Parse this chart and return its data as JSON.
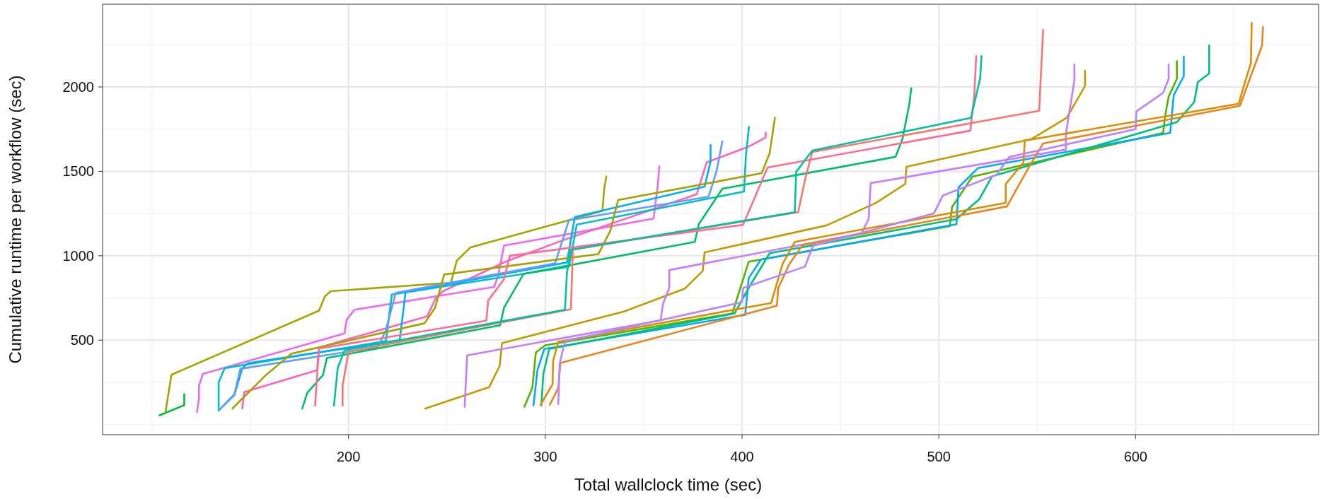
{
  "chart_data": {
    "type": "line",
    "xlabel": "Total wallclock time (sec)",
    "ylabel": "Cumulative runtime per workflow (sec)",
    "xlim": [
      75,
      693
    ],
    "ylim": [
      -60,
      2490
    ],
    "xticks": [
      {
        "value": 100,
        "label": null
      },
      {
        "value": 150,
        "label": null
      },
      200,
      {
        "value": 250,
        "label": null
      },
      300,
      {
        "value": 350,
        "label": null
      },
      400,
      {
        "value": 450,
        "label": null
      },
      500,
      {
        "value": 550,
        "label": null
      },
      600,
      {
        "value": 650,
        "label": null
      }
    ],
    "yticks": [
      {
        "value": 0,
        "label": null
      },
      {
        "value": 250,
        "label": null
      },
      500,
      {
        "value": 750,
        "label": null
      },
      1000,
      {
        "value": 1250,
        "label": null
      },
      1500,
      {
        "value": 1750,
        "label": null
      },
      2000,
      {
        "value": 2250,
        "label": null
      }
    ],
    "grid": true,
    "marker": "none",
    "line_style": "solid",
    "series": [
      {
        "color": "#00ba38",
        "x": [
          104,
          116.5,
          116.5
        ],
        "values": [
          55,
          115,
          180
        ]
      },
      {
        "color": "#a3a500",
        "x": [
          107,
          110,
          185,
          188,
          191,
          252,
          255,
          262,
          329,
          330,
          331
        ],
        "values": [
          75,
          295,
          675,
          760,
          790,
          840,
          970,
          1050,
          1265,
          1400,
          1470
        ]
      },
      {
        "color": "#e76bf3",
        "x": [
          123,
          124,
          124,
          126,
          198,
          199,
          203,
          250,
          274,
          276,
          279,
          355,
          357,
          358
        ],
        "values": [
          75,
          155,
          230,
          300,
          540,
          620,
          680,
          770,
          815,
          880,
          1060,
          1220,
          1400,
          1530
        ]
      },
      {
        "color": "#ff61c3",
        "x": [
          146,
          147,
          184,
          185,
          240,
          244,
          248,
          280,
          309,
          377,
          382,
          403,
          412,
          412
        ],
        "values": [
          95,
          192,
          322,
          456,
          641,
          742,
          790,
          966,
          1092,
          1365,
          1553,
          1645,
          1700,
          1730
        ]
      },
      {
        "color": "#00bfc4",
        "x": [
          134,
          134,
          137,
          219,
          222,
          312,
          316,
          401,
          402,
          403.5
        ],
        "values": [
          83,
          250,
          334,
          495,
          770,
          935,
          1185,
          1380,
          1600,
          1763
        ]
      },
      {
        "color": "#00b0f6",
        "x": [
          134,
          142,
          146,
          149,
          226,
          229,
          311,
          315,
          381,
          384,
          384
        ],
        "values": [
          83,
          175,
          334,
          364,
          500,
          785,
          960,
          1230,
          1410,
          1560,
          1657
        ]
      },
      {
        "color": "#619cff",
        "x": [
          134,
          142,
          145,
          215,
          219,
          224,
          305,
          312,
          383,
          387,
          390
        ],
        "values": [
          83,
          180,
          330,
          460,
          560,
          780,
          955,
          1210,
          1350,
          1500,
          1678
        ]
      },
      {
        "color": "#a6a100",
        "x": [
          141,
          158,
          171,
          238.6,
          244,
          248.6,
          327,
          333,
          337,
          410,
          414,
          416.7
        ],
        "values": [
          95,
          293,
          420,
          600,
          692,
          889,
          1010,
          1146,
          1330,
          1489,
          1607,
          1818
        ]
      },
      {
        "color": "#00be67",
        "x": [
          176.5,
          179,
          187,
          189,
          277,
          279,
          289,
          376,
          378,
          390,
          478,
          481.5,
          485,
          486
        ],
        "values": [
          95,
          188,
          293,
          394,
          588,
          692,
          893,
          1082,
          1187,
          1397,
          1586,
          1691,
          1897,
          1993
        ]
      },
      {
        "color": "#f8766d",
        "x": [
          197,
          197,
          200,
          313,
          314,
          428.5,
          432,
          435.7,
          551,
          552,
          553
        ],
        "values": [
          113,
          231,
          432,
          683,
          1036,
          1258,
          1450,
          1615,
          1859,
          2100,
          2338
        ]
      },
      {
        "color": "#ff6c91",
        "x": [
          183,
          185,
          270,
          271,
          279,
          282,
          400.5,
          413,
          516,
          518,
          519
        ],
        "values": [
          113,
          450,
          615,
          735,
          860,
          1000,
          1183,
          1523,
          1741,
          1950,
          2183
        ]
      },
      {
        "color": "#00c1a3",
        "x": [
          192.6,
          194.5,
          198,
          310,
          311,
          313,
          426.8,
          427.5,
          435.7,
          516.3,
          521,
          521.7
        ],
        "values": [
          113,
          335,
          440,
          680,
          900,
          1035,
          1258,
          1497,
          1623,
          1817,
          2050,
          2183
        ]
      },
      {
        "color": "#c49a00",
        "x": [
          239,
          271.5,
          276.8,
          278,
          340,
          371,
          380,
          381,
          443,
          468,
          483,
          483.5,
          547,
          565,
          574.3,
          574.3
        ],
        "values": [
          95,
          222,
          347,
          482,
          670,
          806,
          910,
          1020,
          1180,
          1313,
          1426,
          1527,
          1691,
          1817,
          2006,
          2096
        ]
      },
      {
        "color": "#c77cff",
        "x": [
          259,
          260.3,
          358.6,
          359.8,
          363,
          363,
          460.7,
          464.3,
          465.4,
          564.6,
          564.6,
          568.9,
          568.9
        ],
        "values": [
          105,
          410,
          617,
          714,
          810,
          915,
          1133,
          1217,
          1430,
          1629,
          1723,
          2040,
          2133
        ]
      },
      {
        "color": "#53b400",
        "x": [
          289.4,
          293.4,
          295.2,
          300,
          395,
          403.4,
          505.6,
          506.7,
          517,
          614,
          615,
          616.8,
          621,
          621
        ],
        "values": [
          105,
          217,
          427,
          470,
          658,
          965,
          1175,
          1288,
          1468,
          1728,
          1826,
          1943,
          2048,
          2153
        ]
      },
      {
        "color": "#00a9ff",
        "x": [
          294,
          296,
          299.5,
          401.6,
          403.4,
          409.6,
          509,
          510,
          520,
          617.6,
          619.4,
          624.5,
          624.5
        ],
        "values": [
          113,
          322,
          448,
          650,
          868,
          977,
          1187,
          1405,
          1520,
          1728,
          1951,
          2064,
          2180
        ]
      },
      {
        "color": "#00bf7d",
        "x": [
          298,
          299,
          302,
          396.2,
          403.4,
          414,
          509,
          520.6,
          527,
          621,
          629.8,
          631.6,
          637.4,
          637.4
        ],
        "values": [
          113,
          300,
          448,
          658,
          810,
          1015,
          1217,
          1335,
          1470,
          1792,
          1910,
          2028,
          2080,
          2246
        ]
      },
      {
        "color": "#db8e00",
        "x": [
          297.6,
          303.7,
          304,
          306.6,
          414.8,
          420.6,
          426.8,
          534,
          534,
          543,
          543.7,
          652.4,
          655,
          658.6,
          659
        ],
        "values": [
          117,
          239,
          378,
          491,
          720,
          952,
          1082,
          1313,
          1425,
          1552,
          1682,
          1901,
          2006,
          2141,
          2380
        ]
      },
      {
        "color": "#e7861b",
        "x": [
          302.3,
          306.6,
          307.7,
          417.7,
          418.4,
          424,
          430.7,
          534.6,
          545.7,
          553,
          653,
          664.3,
          664.7
        ],
        "values": [
          117,
          218,
          365,
          704,
          809,
          950,
          1062,
          1292,
          1523,
          1665,
          1888,
          2246,
          2355
        ]
      },
      {
        "color": "#b983ff",
        "x": [
          306.6,
          307.3,
          310,
          400,
          400.5,
          432,
          436,
          497.5,
          502,
          529.4,
          535.8,
          600,
          600.4,
          614,
          616.8,
          616.8
        ],
        "values": [
          121,
          361,
          494,
          725,
          809,
          936,
          1058,
          1251,
          1356,
          1481,
          1586,
          1750,
          1855,
          1965,
          2048,
          2133
        ]
      }
    ]
  }
}
